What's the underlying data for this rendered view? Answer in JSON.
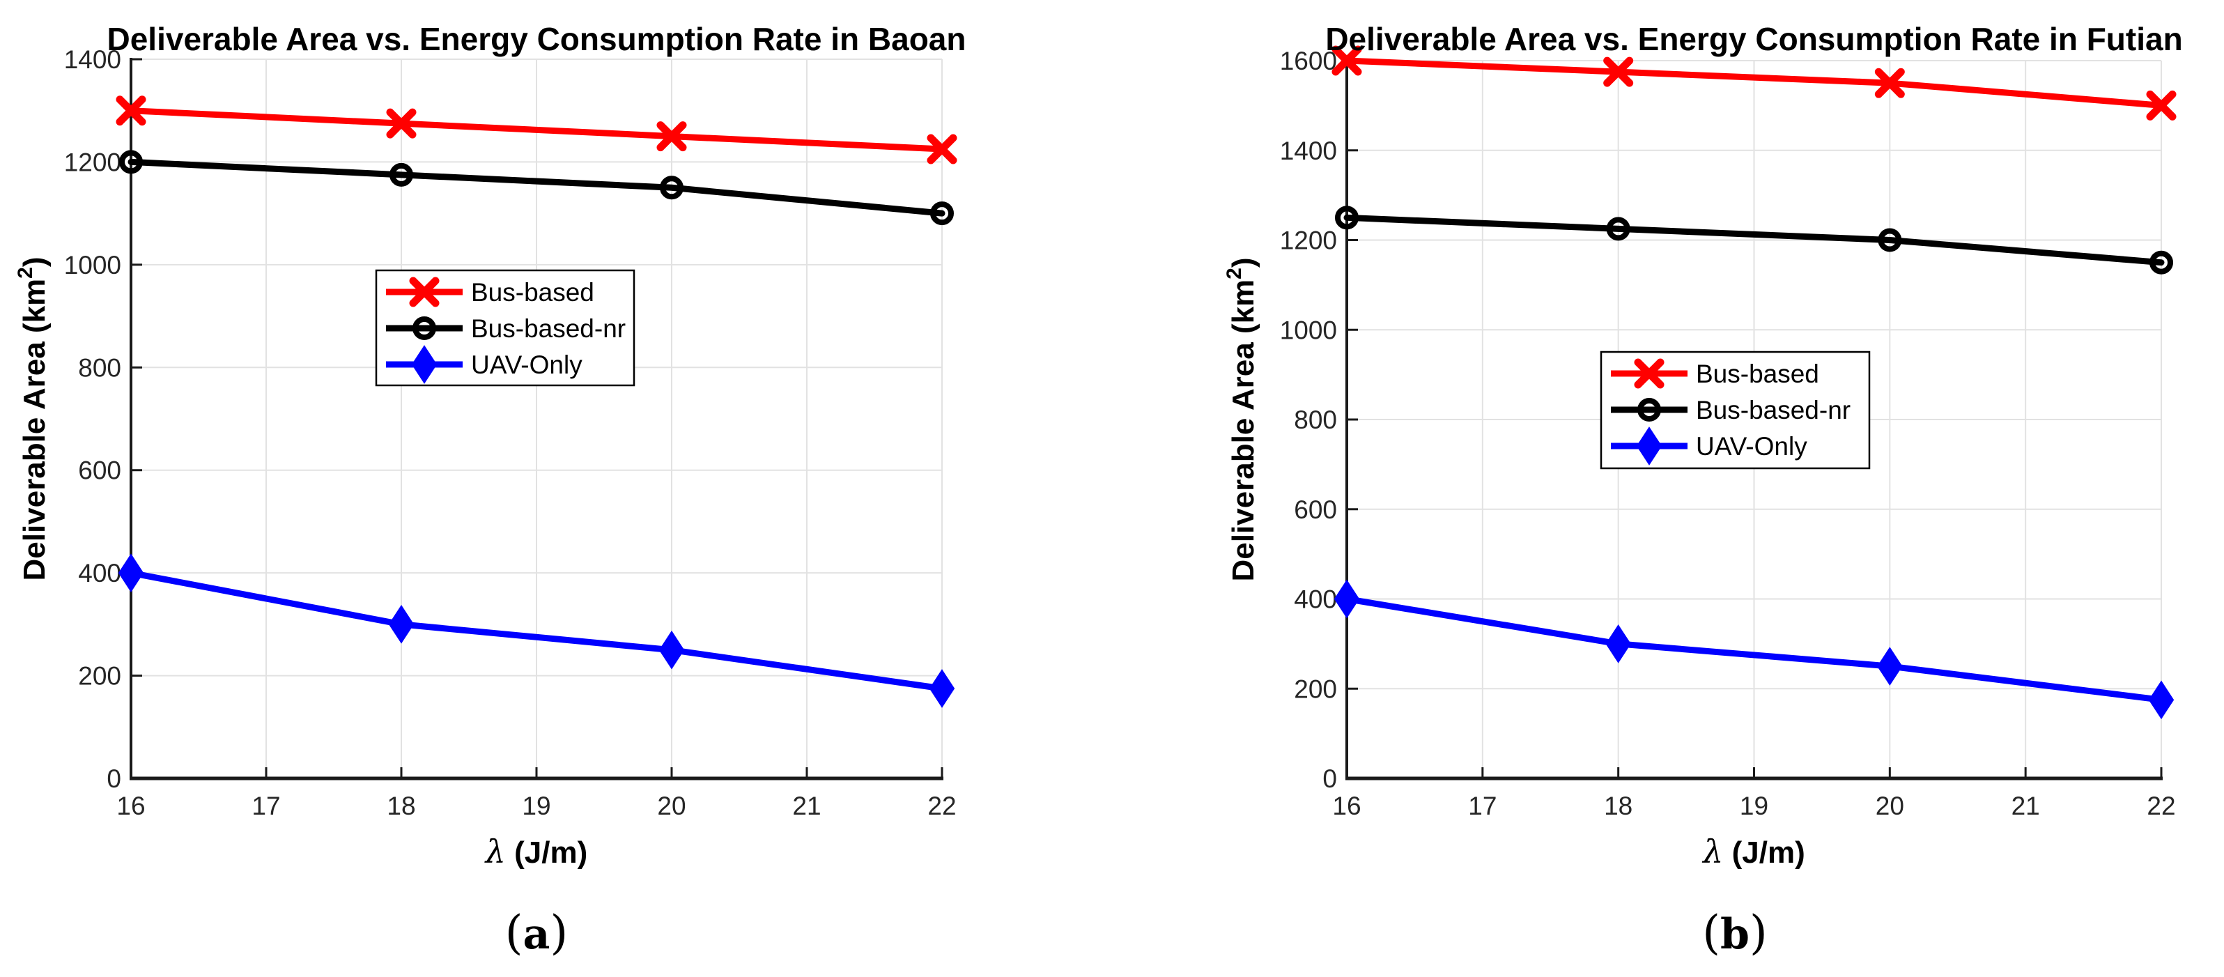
{
  "figure": {
    "background": "#ffffff"
  },
  "chart_data": [
    {
      "type": "line",
      "title": "Deliverable Area vs. Energy Consumption Rate in Baoan",
      "xlabel": {
        "symbol": "λ",
        "units": "(J/m)"
      },
      "ylabel": {
        "main": "Deliverable Area (km",
        "sup": "2",
        "close": ")"
      },
      "x": [
        16,
        18,
        20,
        22
      ],
      "xlim": [
        16,
        22
      ],
      "xticks": [
        16,
        17,
        18,
        19,
        20,
        21,
        22
      ],
      "ylim": [
        0,
        1400
      ],
      "yticks": [
        0,
        200,
        400,
        600,
        800,
        1000,
        1200,
        1400
      ],
      "grid": true,
      "legend_position": "upper-center-left-inside",
      "series": [
        {
          "name": "Bus-based",
          "color": "#FF0000",
          "marker": "x",
          "values": [
            1300,
            1275,
            1250,
            1225
          ]
        },
        {
          "name": "Bus-based-nr",
          "color": "#000000",
          "marker": "circle",
          "values": [
            1200,
            1175,
            1150,
            1100
          ]
        },
        {
          "name": "UAV-Only",
          "color": "#0000FF",
          "marker": "diamond",
          "values": [
            400,
            300,
            250,
            175
          ]
        }
      ],
      "caption": {
        "open": "(",
        "letter": "a",
        "close": ")"
      }
    },
    {
      "type": "line",
      "title": "Deliverable Area vs. Energy Consumption Rate in Futian",
      "xlabel": {
        "symbol": "λ",
        "units": "(J/m)"
      },
      "ylabel": {
        "main": "Deliverable Area (km",
        "sup": "2",
        "close": ")"
      },
      "x": [
        16,
        18,
        20,
        22
      ],
      "xlim": [
        16,
        22
      ],
      "xticks": [
        16,
        17,
        18,
        19,
        20,
        21,
        22
      ],
      "ylim": [
        0,
        1600
      ],
      "yticks": [
        0,
        200,
        400,
        600,
        800,
        1000,
        1200,
        1400,
        1600
      ],
      "grid": true,
      "legend_position": "center-left-inside",
      "series": [
        {
          "name": "Bus-based",
          "color": "#FF0000",
          "marker": "x",
          "values": [
            1600,
            1575,
            1550,
            1500
          ]
        },
        {
          "name": "Bus-based-nr",
          "color": "#000000",
          "marker": "circle",
          "values": [
            1250,
            1225,
            1200,
            1150
          ]
        },
        {
          "name": "UAV-Only",
          "color": "#0000FF",
          "marker": "diamond",
          "values": [
            400,
            300,
            250,
            175
          ]
        }
      ],
      "caption": {
        "open": "(",
        "letter": "b",
        "close": ")"
      }
    }
  ],
  "style_colors": {
    "axis": "#1a1a1a",
    "tick_label": "#262626",
    "grid": "#e2e2e2",
    "legend_border": "#000000",
    "legend_background": "#ffffff",
    "text": "#000000"
  }
}
